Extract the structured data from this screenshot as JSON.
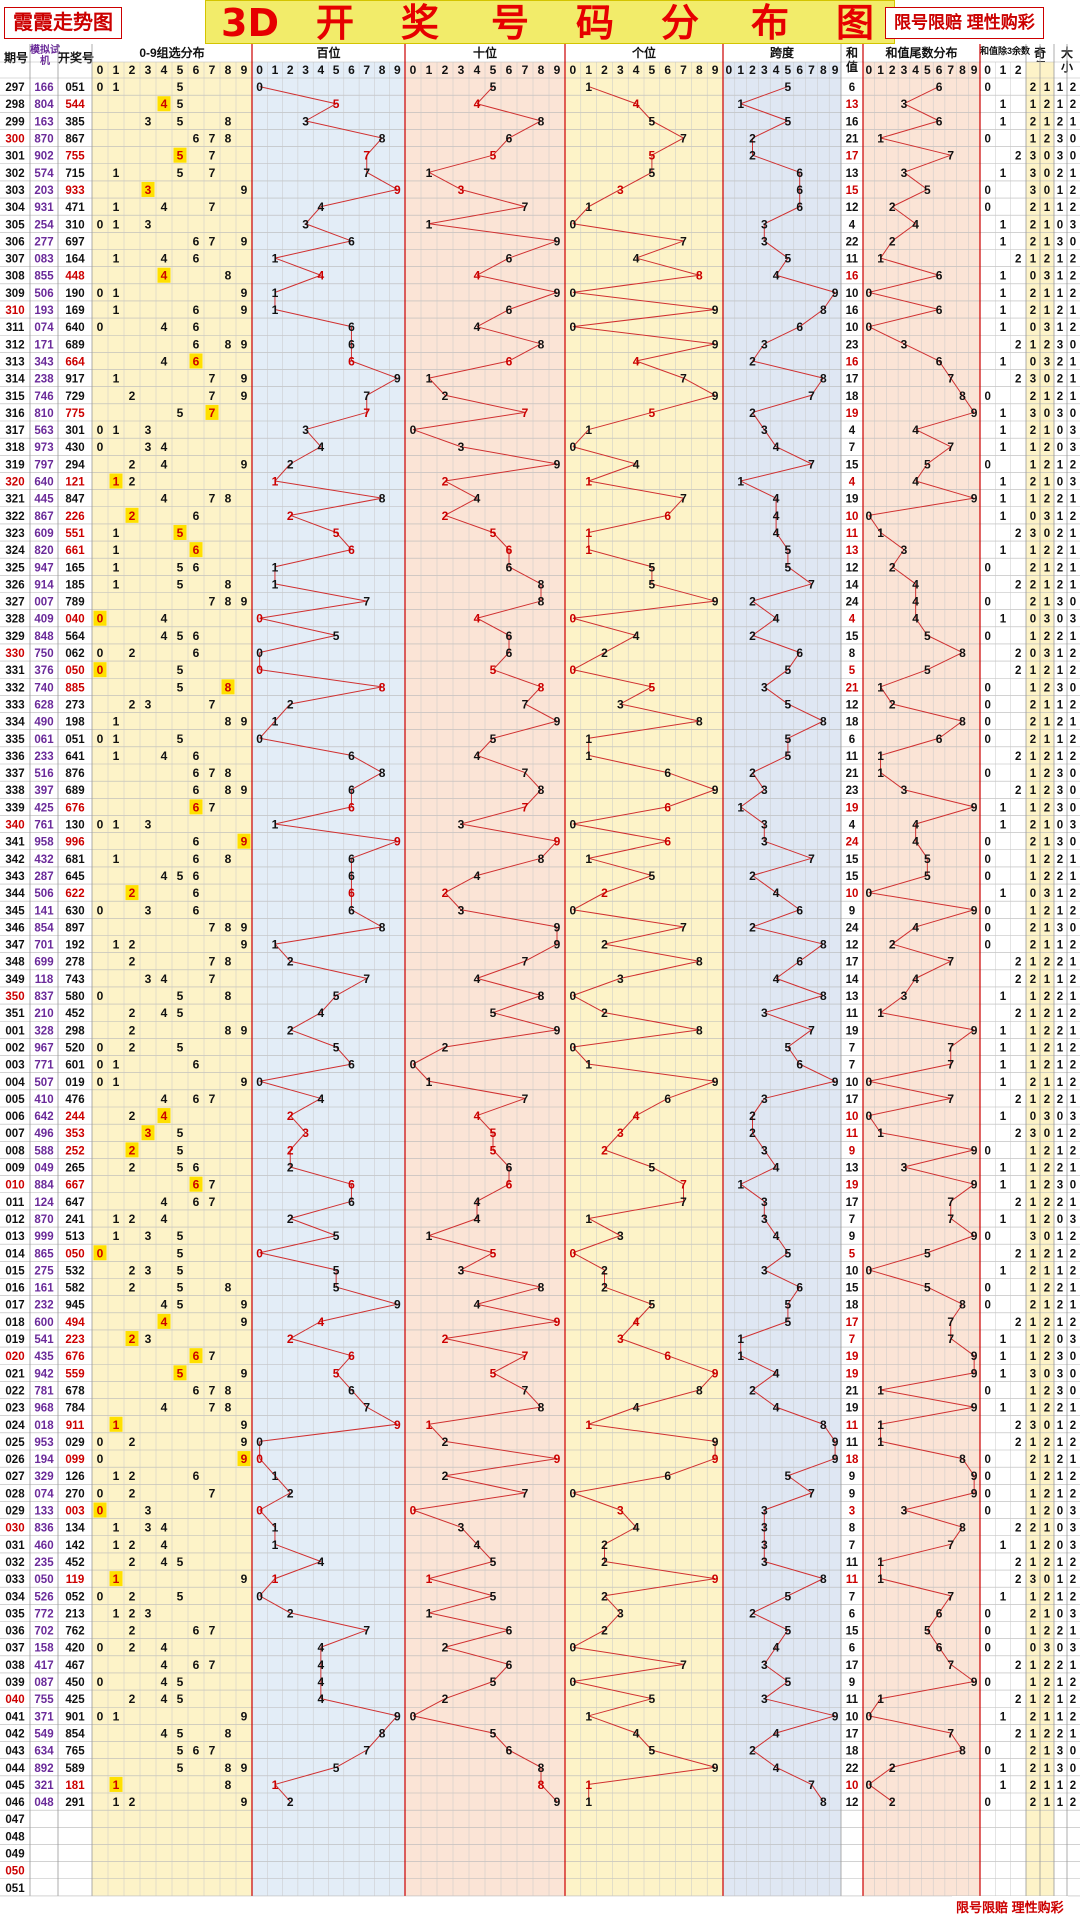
{
  "header": {
    "left_tag": "霞霞走势图",
    "title_chars": [
      "3D",
      "开",
      "奖",
      "号",
      "码",
      "分",
      "布",
      "图"
    ],
    "right_tag": "限号限赔 理性购彩",
    "columns": {
      "period": "期号",
      "sim": "模拟试机",
      "draw": "开奖号",
      "group": "0-9组选分布",
      "hundreds": "百位",
      "tens": "十位",
      "units": "个位",
      "span": "跨度",
      "sum_top": "和",
      "sum_bottom": "值",
      "tail": "和值尾数分布",
      "mod3": "和值除3余数",
      "odd_top": "奇",
      "odd_bottom": "偶",
      "big_top": "大",
      "big_bottom": "小"
    },
    "digits": [
      "0",
      "1",
      "2",
      "3",
      "4",
      "5",
      "6",
      "7",
      "8",
      "9"
    ],
    "mod3_digits": [
      "0",
      "1",
      "2"
    ]
  },
  "footer": {
    "text": "限号限赔 理性购彩"
  },
  "colors": {
    "accent_red": "#cc0000",
    "highlight_yellow": "#ffe000",
    "group_bg": "#fdf3c8",
    "hundreds_bg": "#e3edf7",
    "tens_bg": "#fbe4d6",
    "units_bg": "#fdf3c8",
    "span_bg": "#dfe7f3",
    "tail_bg": "#fbe4d6",
    "sim_purple": "#6a2a99"
  },
  "chart_data": {
    "type": "table",
    "rows": [
      {
        "p": "297",
        "s": "166",
        "d": "051"
      },
      {
        "p": "298",
        "s": "804",
        "d": "544"
      },
      {
        "p": "299",
        "s": "163",
        "d": "385"
      },
      {
        "p": "300",
        "s": "870",
        "d": "867"
      },
      {
        "p": "301",
        "s": "902",
        "d": "755"
      },
      {
        "p": "302",
        "s": "574",
        "d": "715"
      },
      {
        "p": "303",
        "s": "203",
        "d": "933"
      },
      {
        "p": "304",
        "s": "931",
        "d": "471"
      },
      {
        "p": "305",
        "s": "254",
        "d": "310"
      },
      {
        "p": "306",
        "s": "277",
        "d": "697"
      },
      {
        "p": "307",
        "s": "083",
        "d": "164"
      },
      {
        "p": "308",
        "s": "855",
        "d": "448"
      },
      {
        "p": "309",
        "s": "506",
        "d": "190"
      },
      {
        "p": "310",
        "s": "193",
        "d": "169"
      },
      {
        "p": "311",
        "s": "074",
        "d": "640"
      },
      {
        "p": "312",
        "s": "171",
        "d": "689"
      },
      {
        "p": "313",
        "s": "343",
        "d": "664"
      },
      {
        "p": "314",
        "s": "238",
        "d": "917"
      },
      {
        "p": "315",
        "s": "746",
        "d": "729"
      },
      {
        "p": "316",
        "s": "810",
        "d": "775"
      },
      {
        "p": "317",
        "s": "563",
        "d": "301"
      },
      {
        "p": "318",
        "s": "973",
        "d": "430"
      },
      {
        "p": "319",
        "s": "797",
        "d": "294"
      },
      {
        "p": "320",
        "s": "640",
        "d": "121"
      },
      {
        "p": "321",
        "s": "445",
        "d": "847"
      },
      {
        "p": "322",
        "s": "867",
        "d": "226"
      },
      {
        "p": "323",
        "s": "609",
        "d": "551"
      },
      {
        "p": "324",
        "s": "820",
        "d": "661"
      },
      {
        "p": "325",
        "s": "947",
        "d": "165"
      },
      {
        "p": "326",
        "s": "914",
        "d": "185"
      },
      {
        "p": "327",
        "s": "007",
        "d": "789"
      },
      {
        "p": "328",
        "s": "409",
        "d": "040"
      },
      {
        "p": "329",
        "s": "848",
        "d": "564"
      },
      {
        "p": "330",
        "s": "750",
        "d": "062"
      },
      {
        "p": "331",
        "s": "376",
        "d": "050"
      },
      {
        "p": "332",
        "s": "740",
        "d": "885"
      },
      {
        "p": "333",
        "s": "628",
        "d": "273"
      },
      {
        "p": "334",
        "s": "490",
        "d": "198"
      },
      {
        "p": "335",
        "s": "061",
        "d": "051"
      },
      {
        "p": "336",
        "s": "233",
        "d": "641"
      },
      {
        "p": "337",
        "s": "516",
        "d": "876"
      },
      {
        "p": "338",
        "s": "397",
        "d": "689"
      },
      {
        "p": "339",
        "s": "425",
        "d": "676"
      },
      {
        "p": "340",
        "s": "761",
        "d": "130"
      },
      {
        "p": "341",
        "s": "958",
        "d": "996"
      },
      {
        "p": "342",
        "s": "432",
        "d": "681"
      },
      {
        "p": "343",
        "s": "287",
        "d": "645"
      },
      {
        "p": "344",
        "s": "506",
        "d": "622"
      },
      {
        "p": "345",
        "s": "141",
        "d": "630"
      },
      {
        "p": "346",
        "s": "854",
        "d": "897"
      },
      {
        "p": "347",
        "s": "701",
        "d": "192"
      },
      {
        "p": "348",
        "s": "699",
        "d": "278"
      },
      {
        "p": "349",
        "s": "118",
        "d": "743"
      },
      {
        "p": "350",
        "s": "837",
        "d": "580"
      },
      {
        "p": "351",
        "s": "210",
        "d": "452"
      },
      {
        "p": "001",
        "s": "328",
        "d": "298"
      },
      {
        "p": "002",
        "s": "967",
        "d": "520"
      },
      {
        "p": "003",
        "s": "771",
        "d": "601"
      },
      {
        "p": "004",
        "s": "507",
        "d": "019"
      },
      {
        "p": "005",
        "s": "410",
        "d": "476"
      },
      {
        "p": "006",
        "s": "642",
        "d": "244"
      },
      {
        "p": "007",
        "s": "496",
        "d": "353"
      },
      {
        "p": "008",
        "s": "588",
        "d": "252"
      },
      {
        "p": "009",
        "s": "049",
        "d": "265"
      },
      {
        "p": "010",
        "s": "884",
        "d": "667"
      },
      {
        "p": "011",
        "s": "124",
        "d": "647"
      },
      {
        "p": "012",
        "s": "870",
        "d": "241"
      },
      {
        "p": "013",
        "s": "999",
        "d": "513"
      },
      {
        "p": "014",
        "s": "865",
        "d": "050"
      },
      {
        "p": "015",
        "s": "275",
        "d": "532"
      },
      {
        "p": "016",
        "s": "161",
        "d": "582"
      },
      {
        "p": "017",
        "s": "232",
        "d": "945"
      },
      {
        "p": "018",
        "s": "600",
        "d": "494"
      },
      {
        "p": "019",
        "s": "541",
        "d": "223"
      },
      {
        "p": "020",
        "s": "435",
        "d": "676"
      },
      {
        "p": "021",
        "s": "942",
        "d": "559"
      },
      {
        "p": "022",
        "s": "781",
        "d": "678"
      },
      {
        "p": "023",
        "s": "968",
        "d": "784"
      },
      {
        "p": "024",
        "s": "018",
        "d": "911"
      },
      {
        "p": "025",
        "s": "953",
        "d": "029"
      },
      {
        "p": "026",
        "s": "194",
        "d": "099"
      },
      {
        "p": "027",
        "s": "329",
        "d": "126"
      },
      {
        "p": "028",
        "s": "074",
        "d": "270"
      },
      {
        "p": "029",
        "s": "133",
        "d": "003"
      },
      {
        "p": "030",
        "s": "836",
        "d": "134"
      },
      {
        "p": "031",
        "s": "460",
        "d": "142"
      },
      {
        "p": "032",
        "s": "235",
        "d": "452"
      },
      {
        "p": "033",
        "s": "050",
        "d": "119"
      },
      {
        "p": "034",
        "s": "526",
        "d": "052"
      },
      {
        "p": "035",
        "s": "772",
        "d": "213"
      },
      {
        "p": "036",
        "s": "702",
        "d": "762"
      },
      {
        "p": "037",
        "s": "158",
        "d": "420"
      },
      {
        "p": "038",
        "s": "417",
        "d": "467"
      },
      {
        "p": "039",
        "s": "087",
        "d": "450"
      },
      {
        "p": "040",
        "s": "755",
        "d": "425"
      },
      {
        "p": "041",
        "s": "371",
        "d": "901"
      },
      {
        "p": "042",
        "s": "549",
        "d": "854"
      },
      {
        "p": "043",
        "s": "634",
        "d": "765"
      },
      {
        "p": "044",
        "s": "892",
        "d": "589"
      },
      {
        "p": "045",
        "s": "321",
        "d": "181"
      },
      {
        "p": "046",
        "s": "048",
        "d": "291"
      },
      {
        "p": "047",
        "s": "",
        "d": ""
      },
      {
        "p": "048",
        "s": "",
        "d": ""
      },
      {
        "p": "049",
        "s": "",
        "d": ""
      },
      {
        "p": "050",
        "s": "",
        "d": ""
      },
      {
        "p": "051",
        "s": "",
        "d": ""
      }
    ]
  }
}
